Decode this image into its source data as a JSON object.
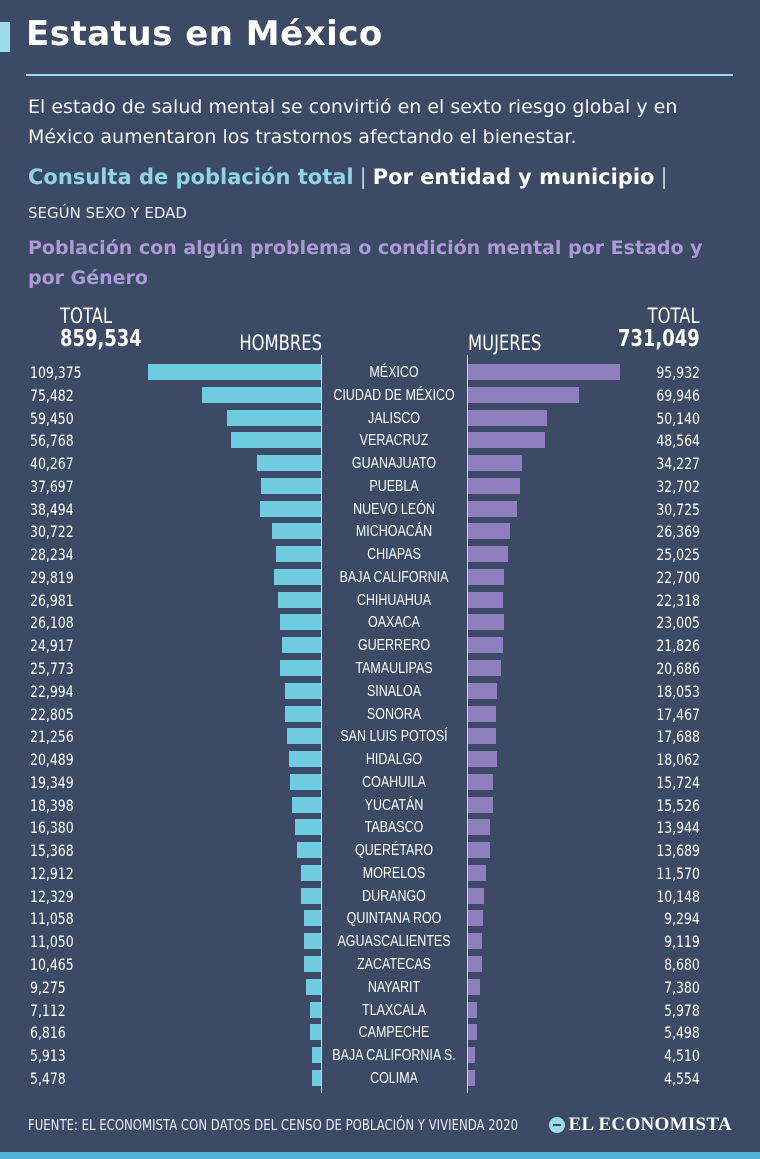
{
  "header": {
    "title": "Estatus en México",
    "intro": "El estado de salud mental se convirtió en el sexto riesgo global y en México aumentaron los trastornos afectando el bienestar.",
    "link_population": "Consulta de población total",
    "separator": "|",
    "link_entity": "Por entidad y municipio",
    "subtitle_sex_age": "SEGÚN SEXO Y EDAD",
    "chart_title": "Población con algún problema o condición mental por Estado y por Género"
  },
  "totals": {
    "left_label": "TOTAL",
    "left_value": "859,534",
    "right_label": "TOTAL",
    "right_value": "731,049"
  },
  "chart_data": {
    "type": "bar",
    "orientation": "horizontal-butterfly",
    "title": "Población con algún problema o condición mental por Estado y por Género",
    "categories": [
      "MÉXICO",
      "CIUDAD DE MÉXICO",
      "JALISCO",
      "VERACRUZ",
      "GUANAJUATO",
      "PUEBLA",
      "NUEVO LEÓN",
      "MICHOACÁN",
      "CHIAPAS",
      "BAJA CALIFORNIA",
      "CHIHUAHUA",
      "OAXACA",
      "GUERRERO",
      "TAMAULIPAS",
      "SINALOA",
      "SONORA",
      "SAN LUIS POTOSÍ",
      "HIDALGO",
      "COAHUILA",
      "YUCATÁN",
      "TABASCO",
      "QUERÉTARO",
      "MORELOS",
      "DURANGO",
      "QUINTANA ROO",
      "AGUASCALIENTES",
      "ZACATECAS",
      "NAYARIT",
      "TLAXCALA",
      "CAMPECHE",
      "BAJA CALIFORNIA S.",
      "COLIMA"
    ],
    "series": [
      {
        "name": "HOMBRES",
        "values": [
          109375,
          75482,
          59450,
          56768,
          40267,
          37697,
          38494,
          30722,
          28234,
          29819,
          26981,
          26108,
          24917,
          25773,
          22994,
          22805,
          21256,
          20489,
          19349,
          18398,
          16380,
          15368,
          12912,
          12329,
          11058,
          11050,
          10465,
          9275,
          7112,
          6816,
          5913,
          5478
        ]
      },
      {
        "name": "MUJERES",
        "values": [
          95932,
          69946,
          50140,
          48564,
          34227,
          32702,
          30725,
          26369,
          25025,
          22700,
          22318,
          23005,
          21826,
          20686,
          18053,
          17467,
          17688,
          18062,
          15724,
          15526,
          13944,
          13689,
          11570,
          10148,
          9294,
          9119,
          8680,
          7380,
          5978,
          5498,
          4510,
          4554
        ]
      }
    ],
    "xlim": [
      0,
      110000
    ],
    "colors": {
      "HOMBRES": "#6fcbe0",
      "MUJERES": "#8f7fbf"
    },
    "grid": false
  },
  "footer": {
    "source": "FUENTE: EL ECONOMISTA CON DATOS DEL CENSO DE POBLACIÓN Y VIVIENDA 2020",
    "logo_text": "EL ECONOMISTA"
  },
  "colors": {
    "background": "#3d4a66",
    "accent": "#9adde8",
    "purple_text": "#ab9ad6"
  }
}
